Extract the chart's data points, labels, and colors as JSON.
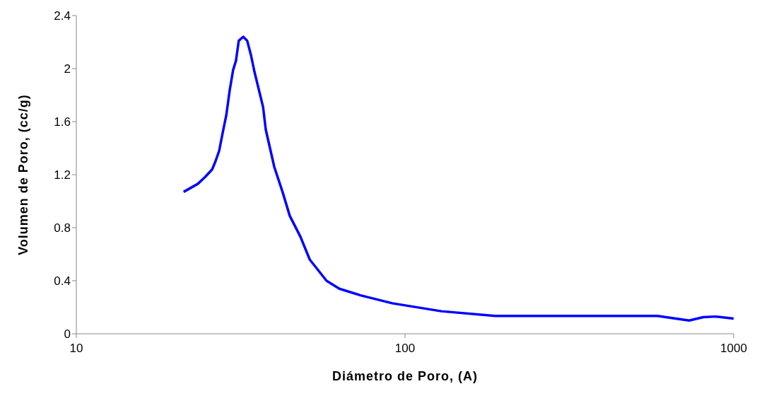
{
  "chart_data": {
    "type": "line",
    "xlabel": "Diámetro de Poro, (A)",
    "ylabel": "Volumen de Poro, (cc/g)",
    "log": "x",
    "grid": false,
    "legend": false,
    "marker": "none",
    "line_style": "solid",
    "xlim": [
      10,
      1000
    ],
    "xticks": [
      10,
      100,
      1000
    ],
    "ylim": [
      0,
      2.4
    ],
    "yticks": [
      0,
      0.4,
      0.8,
      1.2,
      1.6,
      2,
      2.4
    ],
    "x": [
      21.2,
      23.4,
      24.6,
      25.9,
      26.5,
      27.2,
      27.9,
      28.6,
      29.3,
      30.0,
      30.6,
      31.2,
      32.2,
      33.1,
      34.0,
      34.8,
      37.0,
      37.7,
      39.0,
      40.0,
      42.4,
      44.6,
      48.1,
      51.3,
      57.7,
      63.1,
      73.2,
      91.5,
      129,
      188,
      586,
      732,
      808,
      880,
      1000
    ],
    "series": [
      {
        "color": "#0000ff",
        "values": [
          1.07,
          1.13,
          1.18,
          1.24,
          1.3,
          1.38,
          1.52,
          1.65,
          1.84,
          1.99,
          2.06,
          2.21,
          2.24,
          2.21,
          2.1,
          1.98,
          1.71,
          1.54,
          1.38,
          1.26,
          1.07,
          0.89,
          0.73,
          0.56,
          0.4,
          0.34,
          0.29,
          0.23,
          0.17,
          0.135,
          0.135,
          0.1,
          0.125,
          0.13,
          0.115
        ]
      }
    ]
  }
}
